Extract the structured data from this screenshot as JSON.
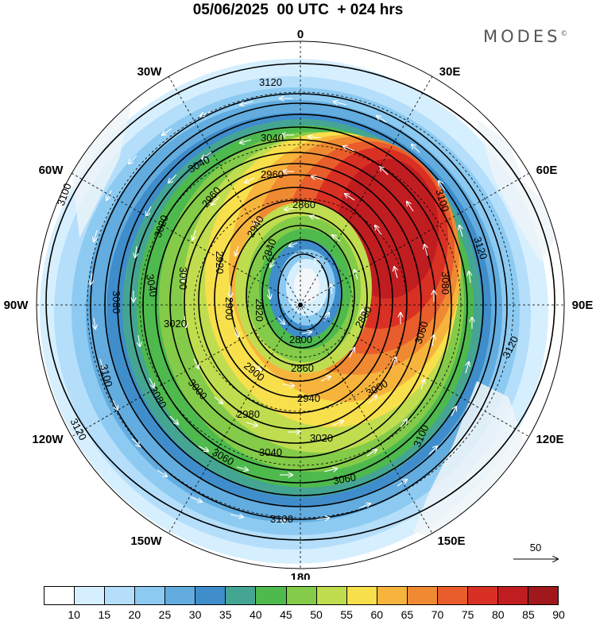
{
  "title": "05/06/2025  00 UTC  + 024 hrs",
  "brand": "MODES",
  "brand_mark": "©",
  "longitude_labels": [
    "0",
    "30E",
    "60E",
    "90E",
    "120E",
    "150E",
    "180",
    "150W",
    "120W",
    "90W",
    "60W",
    "30W"
  ],
  "height_contour_labels": [
    "3120",
    "3100",
    "3080",
    "3060",
    "3040",
    "3020",
    "3000",
    "2980",
    "2960",
    "2940",
    "2920",
    "2900",
    "2880",
    "2860",
    "2840",
    "2820",
    "2800"
  ],
  "reference_vector": {
    "label": "50"
  },
  "colorbar": {
    "tick_labels": [
      "10",
      "15",
      "20",
      "25",
      "30",
      "35",
      "40",
      "45",
      "50",
      "55",
      "60",
      "65",
      "70",
      "75",
      "80",
      "85",
      "90"
    ],
    "colors": [
      "#ffffff",
      "#d6efff",
      "#b4defa",
      "#8ccaf1",
      "#62acdf",
      "#3f8ecb",
      "#45a593",
      "#4eba4e",
      "#83cb48",
      "#c0dd4f",
      "#f8df4c",
      "#f7b43c",
      "#f08a32",
      "#e85d2b",
      "#d93024",
      "#c01d21",
      "#a0181c"
    ]
  }
}
